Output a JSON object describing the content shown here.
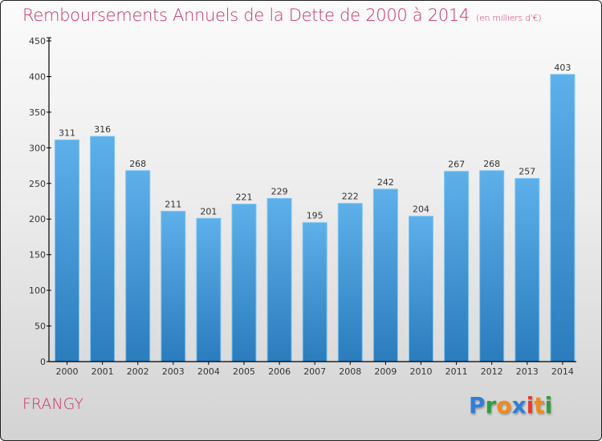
{
  "chart_data": {
    "type": "bar",
    "title": "Remboursements Annuels de la Dette de 2000 à 2014",
    "unit_note": "(en milliers d'€)",
    "xlabel": "",
    "ylabel": "",
    "categories": [
      "2000",
      "2001",
      "2002",
      "2003",
      "2004",
      "2005",
      "2006",
      "2007",
      "2008",
      "2009",
      "2010",
      "2011",
      "2012",
      "2013",
      "2014"
    ],
    "values": [
      311,
      316,
      268,
      211,
      201,
      221,
      229,
      195,
      222,
      242,
      204,
      267,
      268,
      257,
      403
    ],
    "ylim": [
      0,
      450
    ],
    "yticks": [
      0,
      50,
      100,
      150,
      200,
      250,
      300,
      350,
      400,
      450
    ],
    "grid": false,
    "legend": "none",
    "bar_color": "#4a9ede"
  },
  "footer": {
    "commune": "FRANGY",
    "logo": [
      "P",
      "r",
      "o",
      "x",
      "i",
      "t",
      "i"
    ],
    "logo_colors": [
      "#2e7fd6",
      "#2e9e3e",
      "#f28a1a",
      "#2e7fd6",
      "#e63b2e",
      "#f28a1a",
      "#2e9e3e"
    ]
  }
}
